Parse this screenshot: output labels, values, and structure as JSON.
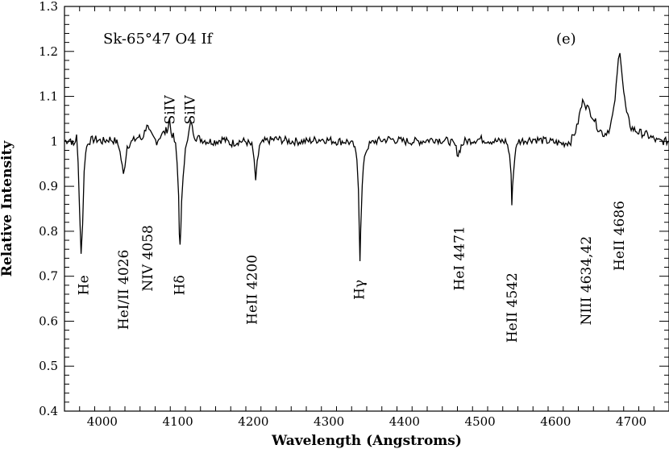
{
  "chart_data": {
    "type": "line",
    "title": "Sk-65°47 O4 If",
    "panel_label": "(e)",
    "xlabel": "Wavelength (Angstroms)",
    "ylabel": "Relative Intensity",
    "xlim": [
      3950,
      4750
    ],
    "ylim": [
      0.4,
      1.3
    ],
    "x_ticks": [
      4000,
      4100,
      4200,
      4300,
      4400,
      4500,
      4600,
      4700
    ],
    "y_ticks": [
      0.4,
      0.5,
      0.6,
      0.7,
      0.8,
      0.9,
      1.0,
      1.1,
      1.2,
      1.3
    ],
    "x_tick_labels": [
      "4000",
      "4100",
      "4200",
      "4300",
      "4400",
      "4500",
      "4600",
      "4700"
    ],
    "y_tick_labels": [
      "0.4",
      "0.5",
      "0.6",
      "0.7",
      "0.8",
      "0.9",
      "1",
      "1.1",
      "1.2",
      "1.3"
    ],
    "grid": false,
    "series": [
      {
        "color": "#000000",
        "points": [
          [
            3950,
            1.0
          ],
          [
            3958,
            1.005
          ],
          [
            3962,
            0.99
          ],
          [
            3966,
            1.01
          ],
          [
            3968,
            0.95
          ],
          [
            3970,
            0.85
          ],
          [
            3972,
            0.75
          ],
          [
            3974,
            0.82
          ],
          [
            3976,
            0.93
          ],
          [
            3978,
            0.98
          ],
          [
            3982,
            1.0
          ],
          [
            3990,
            1.005
          ],
          [
            4000,
            1.0
          ],
          [
            4010,
            1.005
          ],
          [
            4018,
            1.0
          ],
          [
            4022,
            0.99
          ],
          [
            4025,
            0.96
          ],
          [
            4028,
            0.925
          ],
          [
            4030,
            0.95
          ],
          [
            4033,
            0.99
          ],
          [
            4040,
            1.0
          ],
          [
            4048,
            1.01
          ],
          [
            4052,
            1.005
          ],
          [
            4056,
            1.02
          ],
          [
            4059,
            1.04
          ],
          [
            4062,
            1.02
          ],
          [
            4066,
            1.01
          ],
          [
            4072,
            1.0
          ],
          [
            4078,
            1.015
          ],
          [
            4083,
            1.02
          ],
          [
            4087,
            1.03
          ],
          [
            4089,
            1.05
          ],
          [
            4091,
            1.02
          ],
          [
            4094,
            1.01
          ],
          [
            4097,
            0.99
          ],
          [
            4099,
            0.95
          ],
          [
            4101,
            0.88
          ],
          [
            4102,
            0.8
          ],
          [
            4103,
            0.765
          ],
          [
            4104,
            0.8
          ],
          [
            4105,
            0.87
          ],
          [
            4107,
            0.93
          ],
          [
            4110,
            0.98
          ],
          [
            4113,
            1.0
          ],
          [
            4115,
            1.02
          ],
          [
            4117,
            1.05
          ],
          [
            4119,
            1.03
          ],
          [
            4123,
            1.01
          ],
          [
            4130,
            1.005
          ],
          [
            4140,
            1.0
          ],
          [
            4150,
            1.0
          ],
          [
            4160,
            1.005
          ],
          [
            4170,
            0.995
          ],
          [
            4180,
            1.0
          ],
          [
            4190,
            1.0
          ],
          [
            4198,
            0.99
          ],
          [
            4201,
            0.96
          ],
          [
            4203,
            0.905
          ],
          [
            4205,
            0.95
          ],
          [
            4208,
            0.99
          ],
          [
            4215,
            1.0
          ],
          [
            4230,
            1.005
          ],
          [
            4250,
            1.0
          ],
          [
            4270,
            1.0
          ],
          [
            4290,
            1.005
          ],
          [
            4310,
            1.0
          ],
          [
            4325,
            1.0
          ],
          [
            4333,
            0.99
          ],
          [
            4337,
            0.96
          ],
          [
            4339,
            0.9
          ],
          [
            4340,
            0.82
          ],
          [
            4341,
            0.74
          ],
          [
            4342,
            0.8
          ],
          [
            4344,
            0.9
          ],
          [
            4347,
            0.97
          ],
          [
            4352,
            0.99
          ],
          [
            4360,
            1.0
          ],
          [
            4380,
            1.005
          ],
          [
            4400,
            1.0
          ],
          [
            4420,
            1.0
          ],
          [
            4440,
            1.005
          ],
          [
            4460,
            1.0
          ],
          [
            4467,
            0.99
          ],
          [
            4471,
            0.97
          ],
          [
            4475,
            0.99
          ],
          [
            4480,
            1.0
          ],
          [
            4500,
            1.005
          ],
          [
            4520,
            1.0
          ],
          [
            4535,
            1.0
          ],
          [
            4539,
            0.97
          ],
          [
            4541,
            0.92
          ],
          [
            4542,
            0.865
          ],
          [
            4543,
            0.9
          ],
          [
            4546,
            0.97
          ],
          [
            4550,
            1.0
          ],
          [
            4570,
            1.005
          ],
          [
            4590,
            1.0
          ],
          [
            4610,
            0.995
          ],
          [
            4620,
            1.0
          ],
          [
            4628,
            1.03
          ],
          [
            4633,
            1.07
          ],
          [
            4637,
            1.095
          ],
          [
            4640,
            1.08
          ],
          [
            4648,
            1.06
          ],
          [
            4656,
            1.03
          ],
          [
            4664,
            1.015
          ],
          [
            4672,
            1.03
          ],
          [
            4677,
            1.07
          ],
          [
            4680,
            1.12
          ],
          [
            4683,
            1.18
          ],
          [
            4685,
            1.205
          ],
          [
            4687,
            1.17
          ],
          [
            4690,
            1.11
          ],
          [
            4694,
            1.06
          ],
          [
            4700,
            1.03
          ],
          [
            4710,
            1.02
          ],
          [
            4720,
            1.015
          ],
          [
            4735,
            1.0
          ],
          [
            4750,
            1.0
          ]
        ]
      }
    ],
    "annotations": [
      {
        "text": "He",
        "x": 3975,
        "y": 0.68,
        "rotate": true
      },
      {
        "text": "HeI/II 4026",
        "x": 4028,
        "y": 0.67,
        "rotate": true
      },
      {
        "text": "NIV 4058",
        "x": 4060,
        "y": 0.74,
        "rotate": true
      },
      {
        "text": "SiIV",
        "x": 4089,
        "y": 1.07,
        "rotate": true
      },
      {
        "text": "SiIV",
        "x": 4116,
        "y": 1.07,
        "rotate": true
      },
      {
        "text": "Hδ",
        "x": 4102,
        "y": 0.68,
        "rotate": true
      },
      {
        "text": "HeII 4200",
        "x": 4198,
        "y": 0.67,
        "rotate": true
      },
      {
        "text": "Hγ",
        "x": 4340,
        "y": 0.67,
        "rotate": true
      },
      {
        "text": "HeI 4471",
        "x": 4472,
        "y": 0.74,
        "rotate": true
      },
      {
        "text": "HeII 4542",
        "x": 4542,
        "y": 0.63,
        "rotate": true
      },
      {
        "text": "NIII 4634,42",
        "x": 4640,
        "y": 0.69,
        "rotate": true
      },
      {
        "text": "HeII 4686",
        "x": 4684,
        "y": 0.79,
        "rotate": true
      }
    ]
  }
}
